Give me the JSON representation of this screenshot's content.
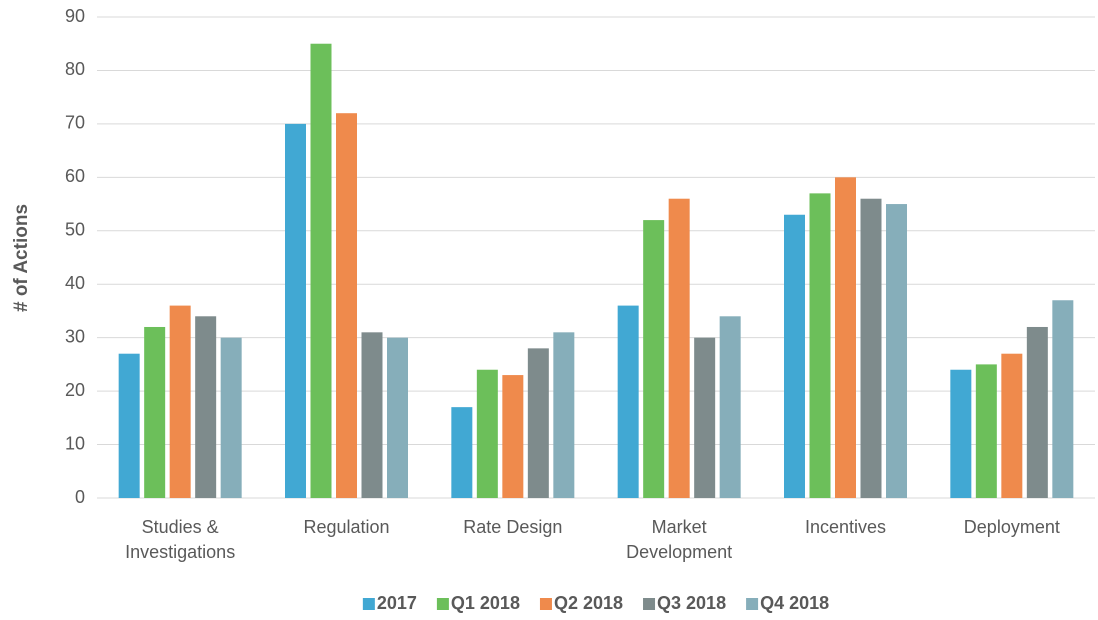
{
  "chart_data": {
    "type": "bar",
    "y_label": "# of Actions",
    "categories": [
      "Studies & Investigations",
      "Regulation",
      "Rate Design",
      "Market Development",
      "Incentives",
      "Deployment"
    ],
    "series": [
      {
        "name": "2017",
        "color": "#41a8d3",
        "values": [
          27,
          70,
          17,
          36,
          53,
          24
        ]
      },
      {
        "name": "Q1 2018",
        "color": "#6cbf5a",
        "values": [
          32,
          85,
          24,
          52,
          57,
          25
        ]
      },
      {
        "name": "Q2 2018",
        "color": "#ef8a4c",
        "values": [
          36,
          72,
          23,
          56,
          60,
          27
        ]
      },
      {
        "name": "Q3 2018",
        "color": "#7e8b8c",
        "values": [
          34,
          31,
          28,
          30,
          56,
          32
        ]
      },
      {
        "name": "Q4 2018",
        "color": "#86aeba",
        "values": [
          30,
          30,
          31,
          34,
          55,
          37
        ]
      }
    ],
    "ylim": [
      0,
      90
    ],
    "yticks": [
      0,
      10,
      20,
      30,
      40,
      50,
      60,
      70,
      80,
      90
    ],
    "grid": true,
    "legend": "bottom"
  }
}
